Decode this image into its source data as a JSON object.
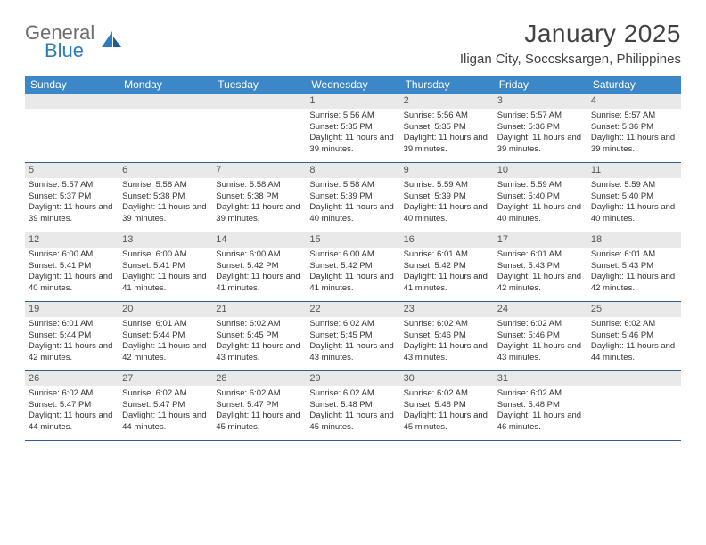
{
  "brand": {
    "word1": "General",
    "word2": "Blue"
  },
  "title": "January 2025",
  "location": "Iligan City, Soccsksargen, Philippines",
  "colors": {
    "header_bg": "#3b87c8",
    "header_text": "#ffffff",
    "daynum_bg": "#e9e9e9",
    "week_border": "#2f5f8f",
    "brand_gray": "#6e6e6e",
    "brand_blue": "#2f7bbf",
    "text": "#333333"
  },
  "day_names": [
    "Sunday",
    "Monday",
    "Tuesday",
    "Wednesday",
    "Thursday",
    "Friday",
    "Saturday"
  ],
  "weeks": [
    [
      {
        "n": "",
        "lines": []
      },
      {
        "n": "",
        "lines": []
      },
      {
        "n": "",
        "lines": []
      },
      {
        "n": "1",
        "lines": [
          "Sunrise: 5:56 AM",
          "Sunset: 5:35 PM",
          "Daylight: 11 hours and 39 minutes."
        ]
      },
      {
        "n": "2",
        "lines": [
          "Sunrise: 5:56 AM",
          "Sunset: 5:35 PM",
          "Daylight: 11 hours and 39 minutes."
        ]
      },
      {
        "n": "3",
        "lines": [
          "Sunrise: 5:57 AM",
          "Sunset: 5:36 PM",
          "Daylight: 11 hours and 39 minutes."
        ]
      },
      {
        "n": "4",
        "lines": [
          "Sunrise: 5:57 AM",
          "Sunset: 5:36 PM",
          "Daylight: 11 hours and 39 minutes."
        ]
      }
    ],
    [
      {
        "n": "5",
        "lines": [
          "Sunrise: 5:57 AM",
          "Sunset: 5:37 PM",
          "Daylight: 11 hours and 39 minutes."
        ]
      },
      {
        "n": "6",
        "lines": [
          "Sunrise: 5:58 AM",
          "Sunset: 5:38 PM",
          "Daylight: 11 hours and 39 minutes."
        ]
      },
      {
        "n": "7",
        "lines": [
          "Sunrise: 5:58 AM",
          "Sunset: 5:38 PM",
          "Daylight: 11 hours and 39 minutes."
        ]
      },
      {
        "n": "8",
        "lines": [
          "Sunrise: 5:58 AM",
          "Sunset: 5:39 PM",
          "Daylight: 11 hours and 40 minutes."
        ]
      },
      {
        "n": "9",
        "lines": [
          "Sunrise: 5:59 AM",
          "Sunset: 5:39 PM",
          "Daylight: 11 hours and 40 minutes."
        ]
      },
      {
        "n": "10",
        "lines": [
          "Sunrise: 5:59 AM",
          "Sunset: 5:40 PM",
          "Daylight: 11 hours and 40 minutes."
        ]
      },
      {
        "n": "11",
        "lines": [
          "Sunrise: 5:59 AM",
          "Sunset: 5:40 PM",
          "Daylight: 11 hours and 40 minutes."
        ]
      }
    ],
    [
      {
        "n": "12",
        "lines": [
          "Sunrise: 6:00 AM",
          "Sunset: 5:41 PM",
          "Daylight: 11 hours and 40 minutes."
        ]
      },
      {
        "n": "13",
        "lines": [
          "Sunrise: 6:00 AM",
          "Sunset: 5:41 PM",
          "Daylight: 11 hours and 41 minutes."
        ]
      },
      {
        "n": "14",
        "lines": [
          "Sunrise: 6:00 AM",
          "Sunset: 5:42 PM",
          "Daylight: 11 hours and 41 minutes."
        ]
      },
      {
        "n": "15",
        "lines": [
          "Sunrise: 6:00 AM",
          "Sunset: 5:42 PM",
          "Daylight: 11 hours and 41 minutes."
        ]
      },
      {
        "n": "16",
        "lines": [
          "Sunrise: 6:01 AM",
          "Sunset: 5:42 PM",
          "Daylight: 11 hours and 41 minutes."
        ]
      },
      {
        "n": "17",
        "lines": [
          "Sunrise: 6:01 AM",
          "Sunset: 5:43 PM",
          "Daylight: 11 hours and 42 minutes."
        ]
      },
      {
        "n": "18",
        "lines": [
          "Sunrise: 6:01 AM",
          "Sunset: 5:43 PM",
          "Daylight: 11 hours and 42 minutes."
        ]
      }
    ],
    [
      {
        "n": "19",
        "lines": [
          "Sunrise: 6:01 AM",
          "Sunset: 5:44 PM",
          "Daylight: 11 hours and 42 minutes."
        ]
      },
      {
        "n": "20",
        "lines": [
          "Sunrise: 6:01 AM",
          "Sunset: 5:44 PM",
          "Daylight: 11 hours and 42 minutes."
        ]
      },
      {
        "n": "21",
        "lines": [
          "Sunrise: 6:02 AM",
          "Sunset: 5:45 PM",
          "Daylight: 11 hours and 43 minutes."
        ]
      },
      {
        "n": "22",
        "lines": [
          "Sunrise: 6:02 AM",
          "Sunset: 5:45 PM",
          "Daylight: 11 hours and 43 minutes."
        ]
      },
      {
        "n": "23",
        "lines": [
          "Sunrise: 6:02 AM",
          "Sunset: 5:46 PM",
          "Daylight: 11 hours and 43 minutes."
        ]
      },
      {
        "n": "24",
        "lines": [
          "Sunrise: 6:02 AM",
          "Sunset: 5:46 PM",
          "Daylight: 11 hours and 43 minutes."
        ]
      },
      {
        "n": "25",
        "lines": [
          "Sunrise: 6:02 AM",
          "Sunset: 5:46 PM",
          "Daylight: 11 hours and 44 minutes."
        ]
      }
    ],
    [
      {
        "n": "26",
        "lines": [
          "Sunrise: 6:02 AM",
          "Sunset: 5:47 PM",
          "Daylight: 11 hours and 44 minutes."
        ]
      },
      {
        "n": "27",
        "lines": [
          "Sunrise: 6:02 AM",
          "Sunset: 5:47 PM",
          "Daylight: 11 hours and 44 minutes."
        ]
      },
      {
        "n": "28",
        "lines": [
          "Sunrise: 6:02 AM",
          "Sunset: 5:47 PM",
          "Daylight: 11 hours and 45 minutes."
        ]
      },
      {
        "n": "29",
        "lines": [
          "Sunrise: 6:02 AM",
          "Sunset: 5:48 PM",
          "Daylight: 11 hours and 45 minutes."
        ]
      },
      {
        "n": "30",
        "lines": [
          "Sunrise: 6:02 AM",
          "Sunset: 5:48 PM",
          "Daylight: 11 hours and 45 minutes."
        ]
      },
      {
        "n": "31",
        "lines": [
          "Sunrise: 6:02 AM",
          "Sunset: 5:48 PM",
          "Daylight: 11 hours and 46 minutes."
        ]
      },
      {
        "n": "",
        "lines": []
      }
    ]
  ]
}
